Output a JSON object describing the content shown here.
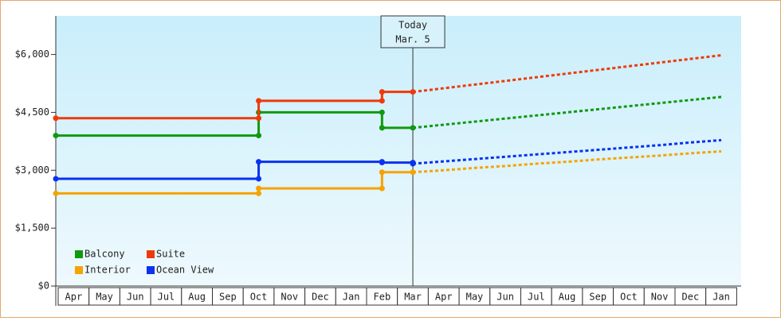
{
  "chart_data": {
    "type": "line",
    "categories": [
      "Apr",
      "May",
      "Jun",
      "Jul",
      "Aug",
      "Sep",
      "Oct",
      "Nov",
      "Dec",
      "Jan",
      "Feb",
      "Mar",
      "Apr",
      "May",
      "Jun",
      "Jul",
      "Aug",
      "Sep",
      "Oct",
      "Nov",
      "Dec",
      "Jan"
    ],
    "series": [
      {
        "name": "Balcony",
        "color": "#119911",
        "values": [
          3900,
          3900,
          3900,
          3900,
          3900,
          3900,
          4500,
          4500,
          4500,
          4500,
          4100,
          4100,
          null,
          null,
          null,
          null,
          null,
          null,
          null,
          null,
          null,
          null
        ],
        "forecast": [
          null,
          null,
          null,
          null,
          null,
          null,
          null,
          null,
          null,
          null,
          null,
          4100,
          4180,
          4260,
          4340,
          4420,
          4500,
          4580,
          4660,
          4740,
          4820,
          4900
        ]
      },
      {
        "name": "Suite",
        "color": "#ee3a0a",
        "values": [
          4350,
          4350,
          4350,
          4350,
          4350,
          4350,
          4800,
          4800,
          4800,
          4800,
          5030,
          5030,
          null,
          null,
          null,
          null,
          null,
          null,
          null,
          null,
          null,
          null
        ],
        "forecast": [
          null,
          null,
          null,
          null,
          null,
          null,
          null,
          null,
          null,
          null,
          null,
          5030,
          5125,
          5220,
          5315,
          5410,
          5505,
          5600,
          5695,
          5790,
          5885,
          5980
        ]
      },
      {
        "name": "Interior",
        "color": "#f5a300",
        "values": [
          2400,
          2400,
          2400,
          2400,
          2400,
          2400,
          2530,
          2530,
          2530,
          2530,
          2950,
          2950,
          null,
          null,
          null,
          null,
          null,
          null,
          null,
          null,
          null,
          null
        ],
        "forecast": [
          null,
          null,
          null,
          null,
          null,
          null,
          null,
          null,
          null,
          null,
          null,
          2950,
          3000,
          3060,
          3110,
          3170,
          3220,
          3280,
          3330,
          3380,
          3440,
          3490
        ]
      },
      {
        "name": "Ocean View",
        "color": "#0a32f0",
        "values": [
          2780,
          2780,
          2780,
          2780,
          2780,
          2780,
          3220,
          3220,
          3220,
          3220,
          3200,
          3170,
          null,
          null,
          null,
          null,
          null,
          null,
          null,
          null,
          null,
          null
        ],
        "forecast": [
          null,
          null,
          null,
          null,
          null,
          null,
          null,
          null,
          null,
          null,
          null,
          3170,
          3230,
          3290,
          3350,
          3410,
          3470,
          3530,
          3590,
          3650,
          3720,
          3780
        ]
      }
    ],
    "annotation": [
      "Today",
      "Mar. 5"
    ],
    "ylim": [
      0,
      7000
    ],
    "yticks": [
      {
        "value": 0,
        "label": "$0"
      },
      {
        "value": 1500,
        "label": "$1,500"
      },
      {
        "value": 3000,
        "label": "$3,000"
      },
      {
        "value": 4500,
        "label": "$4,500"
      },
      {
        "value": 6000,
        "label": "$6,000"
      }
    ],
    "legend": "bottom-left"
  }
}
